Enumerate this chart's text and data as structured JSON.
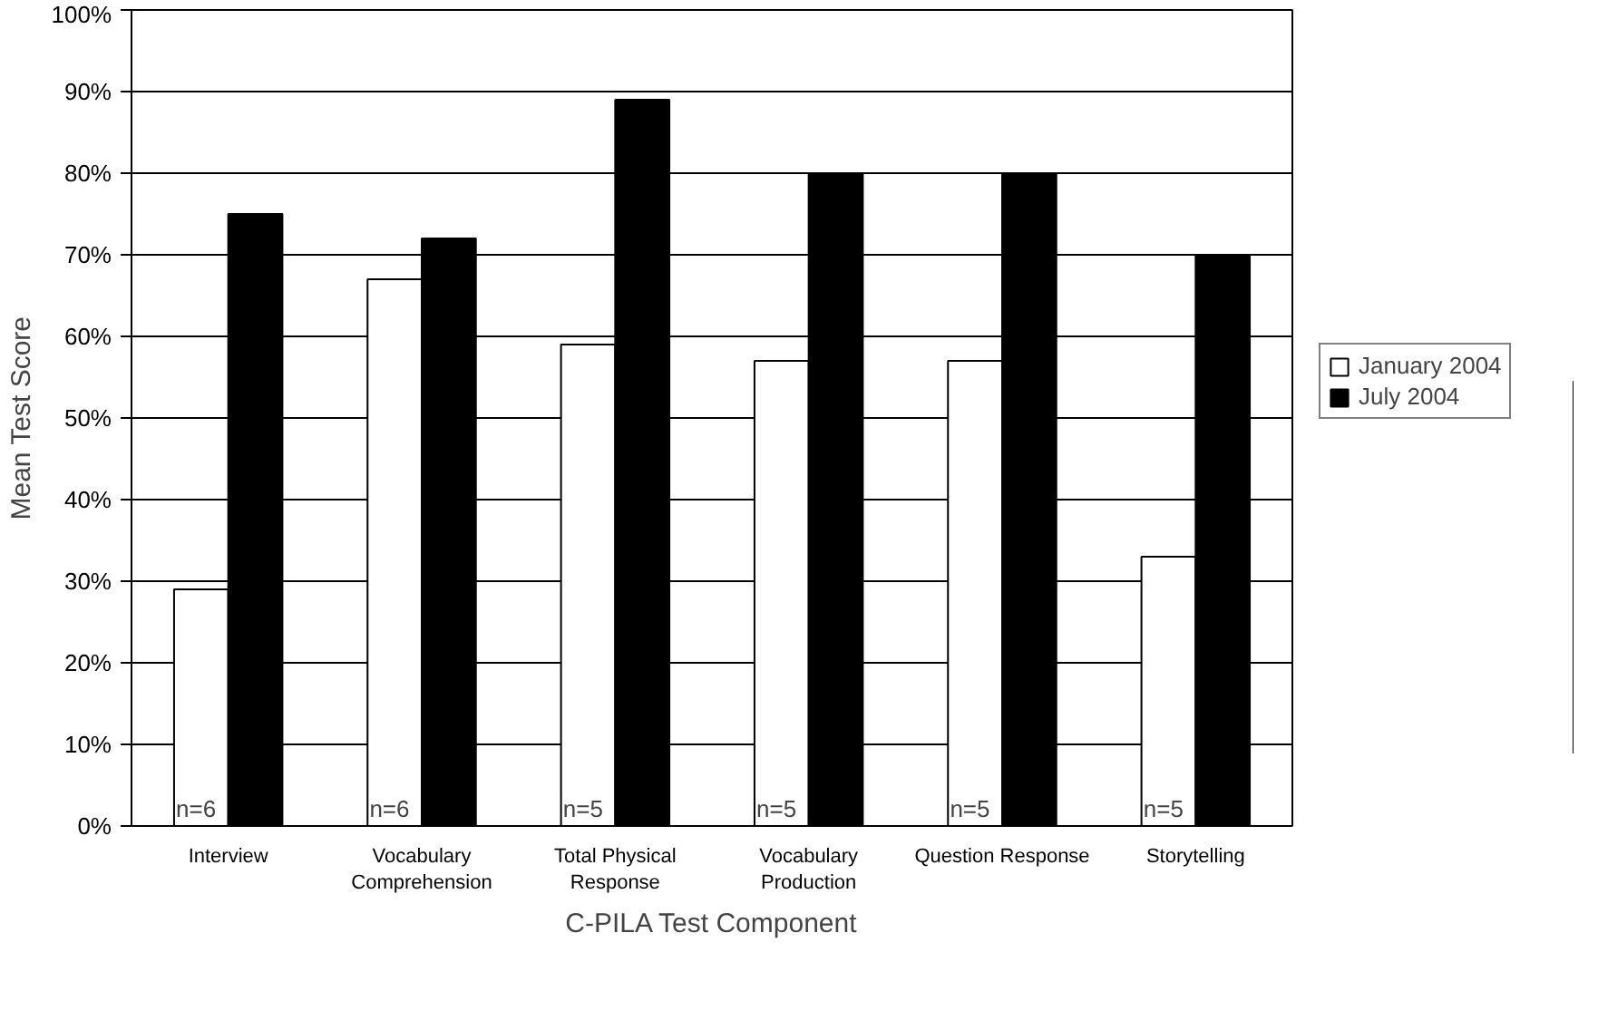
{
  "chart_data": {
    "type": "bar",
    "xlabel": "C-PILA Test Component",
    "ylabel": "Mean Test Score",
    "categories": [
      "Interview",
      "Vocabulary Comprehension",
      "Total Physical Response",
      "Vocabulary Production",
      "Question Response",
      "Storytelling"
    ],
    "series": [
      {
        "name": "January 2004",
        "color": "#ffffff",
        "values": [
          29,
          67,
          59,
          57,
          57,
          33
        ]
      },
      {
        "name": "July 2004",
        "color": "#000000",
        "values": [
          75,
          72,
          89,
          80,
          80,
          70
        ]
      }
    ],
    "ylim": [
      0,
      100
    ],
    "yticks": [
      {
        "value": 0,
        "label": "0%"
      },
      {
        "value": 10,
        "label": "10%"
      },
      {
        "value": 20,
        "label": "20%"
      },
      {
        "value": 30,
        "label": "30%"
      },
      {
        "value": 40,
        "label": "40%"
      },
      {
        "value": 50,
        "label": "50%"
      },
      {
        "value": 60,
        "label": "60%"
      },
      {
        "value": 70,
        "label": "70%"
      },
      {
        "value": 80,
        "label": "80%"
      },
      {
        "value": 90,
        "label": "90%"
      },
      {
        "value": 100,
        "label": "100%"
      }
    ],
    "grid": "y",
    "legend": "right",
    "annotations": [
      {
        "text": "n=6",
        "x": "Interview",
        "y": 0
      },
      {
        "text": "n=6",
        "x": "Vocabulary Comprehension",
        "y": 0
      },
      {
        "text": "n=5",
        "x": "Total Physical Response",
        "y": 0
      },
      {
        "text": "n=5",
        "x": "Vocabulary Production",
        "y": 0
      },
      {
        "text": "n=5",
        "x": "Question Response",
        "y": 0
      },
      {
        "text": "n=5",
        "x": "Storytelling",
        "y": 0
      }
    ]
  }
}
